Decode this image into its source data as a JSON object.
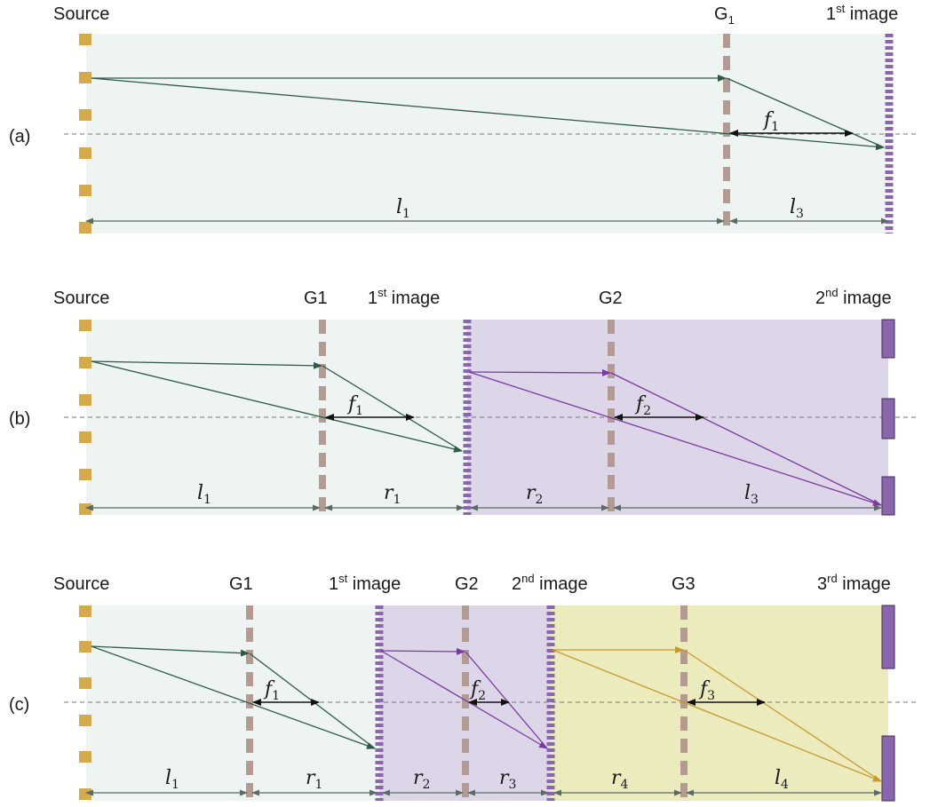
{
  "colors": {
    "source": "#d4aa4c",
    "grating": "#b39b94",
    "image": "#8a66ad",
    "bg_green": "#eef4f1",
    "bg_purple": "#ddd6e8",
    "bg_yellow": "#ecebbd",
    "ray_green": "#2f5a4a",
    "ray_purple": "#7a3aa2",
    "ray_gold": "#c79a2c",
    "dim": "#5a6b63"
  },
  "panels": {
    "a": {
      "label": "(a)",
      "source": "Source",
      "g1": "G",
      "g1_sub": "1",
      "img1_num": "1",
      "img1_sup": "st",
      "img1_word": " image",
      "f1": "f",
      "f1_sub": "1",
      "l1": "l",
      "l1_sub": "1",
      "l3": "l",
      "l3_sub": "3"
    },
    "b": {
      "label": "(b)",
      "source": "Source",
      "g1": "G1",
      "img1_num": "1",
      "img1_sup": "st",
      "img1_word": " image",
      "g2": "G2",
      "img2_num": "2",
      "img2_sup": "nd",
      "img2_word": " image",
      "f1": "f",
      "f1_sub": "1",
      "f2": "f",
      "f2_sub": "2",
      "l1": "l",
      "l1_sub": "1",
      "r1": "r",
      "r1_sub": "1",
      "r2": "r",
      "r2_sub": "2",
      "l3": "l",
      "l3_sub": "3"
    },
    "c": {
      "label": "(c)",
      "source": "Source",
      "g1": "G1",
      "img1_num": "1",
      "img1_sup": "st",
      "img1_word": " image",
      "g2": "G2",
      "img2_num": "2",
      "img2_sup": "nd",
      "img2_word": " image",
      "g3": "G3",
      "img3_num": "3",
      "img3_sup": "rd",
      "img3_word": " image",
      "f1": "f",
      "f1_sub": "1",
      "f2": "f",
      "f2_sub": "2",
      "f3": "f",
      "f3_sub": "3",
      "l1": "l",
      "l1_sub": "1",
      "r1": "r",
      "r1_sub": "1",
      "r2": "r",
      "r2_sub": "2",
      "r3": "r",
      "r3_sub": "3",
      "r4": "r",
      "r4_sub": "4",
      "l4": "l",
      "l4_sub": "4"
    }
  }
}
